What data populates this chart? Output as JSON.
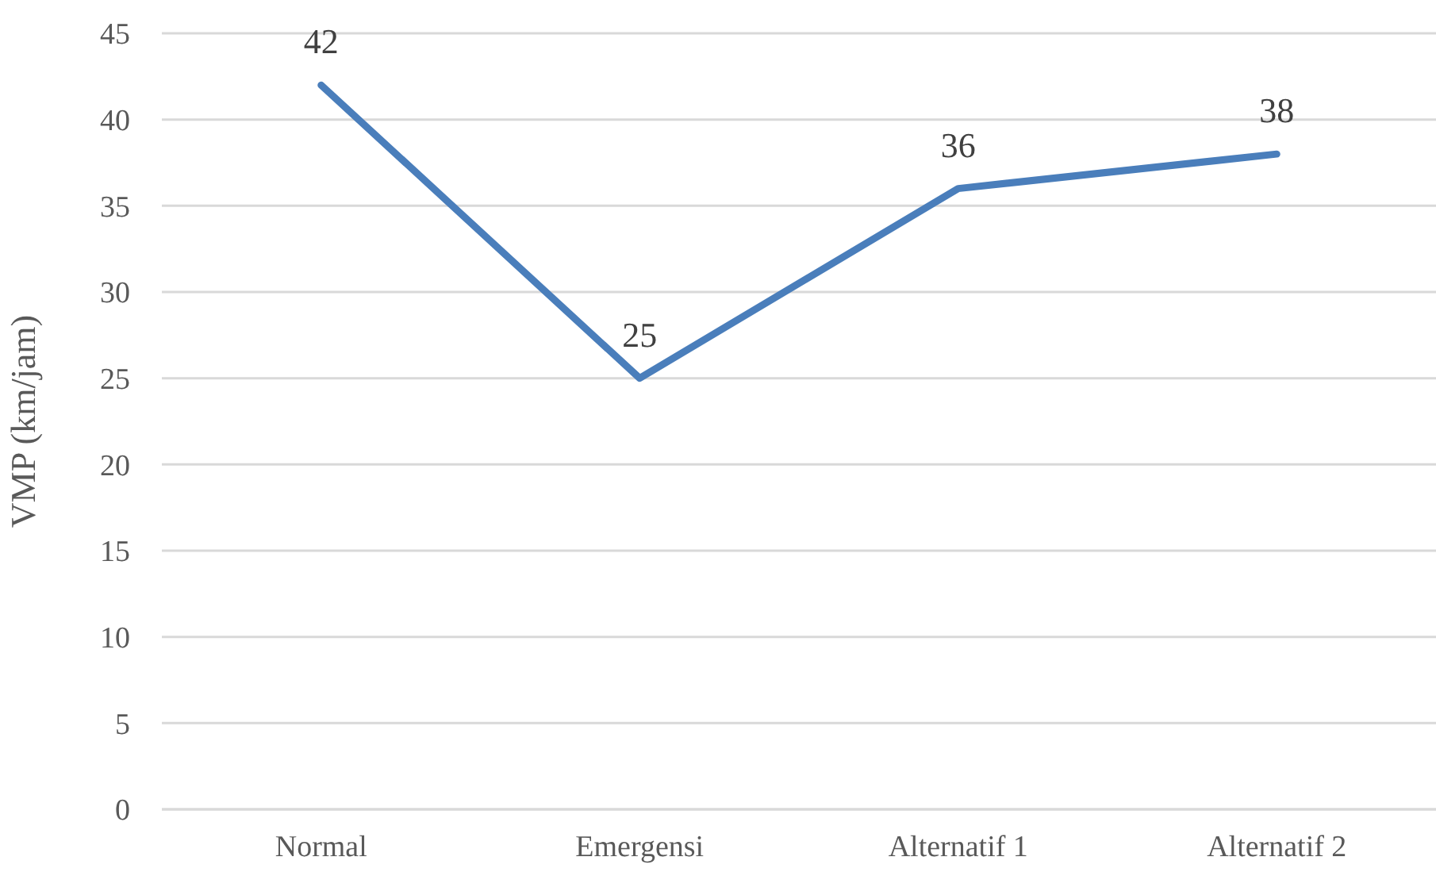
{
  "chart_data": {
    "type": "line",
    "ylabel": "VMP (km/jam)",
    "categories": [
      "Normal",
      "Emergensi",
      "Alternatif 1",
      "Alternatif 2"
    ],
    "values": [
      42,
      25,
      36,
      38
    ],
    "color": "#4a7ebb",
    "ylim": [
      0,
      45
    ],
    "yticks": [
      0,
      5,
      10,
      15,
      20,
      25,
      30,
      35,
      40,
      45
    ],
    "grid": "y",
    "data_labels": true,
    "marker": "none",
    "line_style": "solid"
  }
}
